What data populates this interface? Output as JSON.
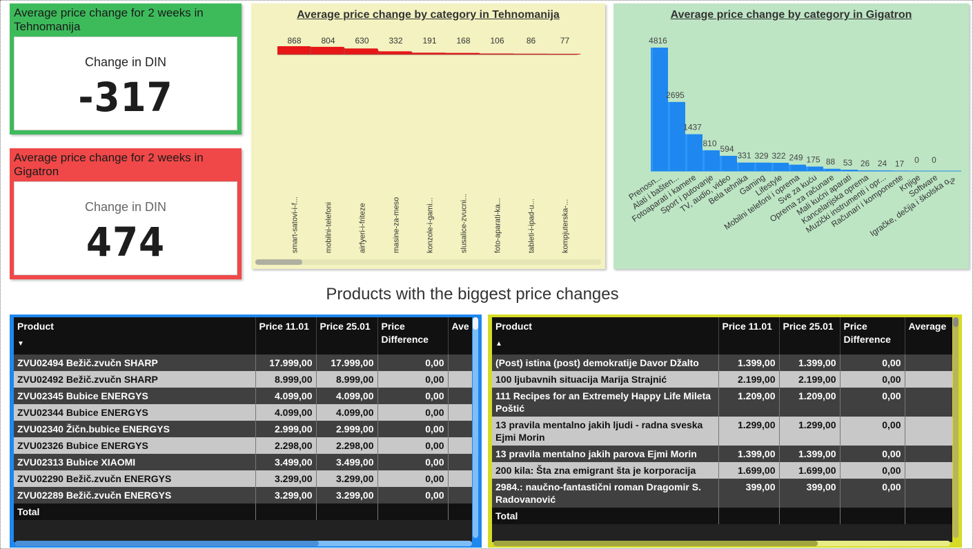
{
  "kpis": {
    "tehnomanija": {
      "title": "Average price change for 2 weeks in Tehnomanija",
      "subtitle": "Change in DIN",
      "value": "-317",
      "color": "#3dbb5b"
    },
    "gigatron": {
      "title": "Average price change for 2 weeks in Gigatron",
      "subtitle": "Change in DIN",
      "value": "474",
      "color": "#f04848"
    }
  },
  "chart_data": [
    {
      "type": "area",
      "title": "Average price change by category in Tehnomanija",
      "background": "#f3f2c0",
      "color": "#e81717",
      "categories": [
        "smart-satovi-i-f...",
        "mobilni-telefoni",
        "airfyeri-i-friteze",
        "masine-za-meso",
        "konzole-i-gami...",
        "slusalice-zvucni...",
        "foto-aparati-ka...",
        "tableti-i-ipad-u...",
        "kompjuterska-..."
      ],
      "values": [
        868,
        804,
        630,
        332,
        191,
        168,
        106,
        86,
        77
      ],
      "value_labels": [
        "868",
        "804",
        "630",
        "332",
        "191",
        "168",
        "106",
        "86",
        "77"
      ]
    },
    {
      "type": "bar",
      "title": "Average price change by category in Gigatron",
      "background": "#bde5c4",
      "color": "#1e88f0",
      "categories": [
        "Prenosn...",
        "Alati i bašten...",
        "Fotoaparati i kamere",
        "Sport i putovanje",
        "TV, audio, video",
        "Bela tehnika",
        "Gaming",
        "Lifestyle",
        "Mobilni telefoni i oprema",
        "Sve za kuću",
        "Oprema za računare",
        "Mali kućni aparati",
        "Kancelarijska oprema",
        "Muzički instrumenti i opr...",
        "Računari i komponente",
        "Knjige",
        "Software",
        "Igračke, dečija i školska o..."
      ],
      "values": [
        4816,
        2695,
        1437,
        810,
        594,
        331,
        329,
        322,
        249,
        175,
        88,
        53,
        26,
        24,
        17,
        0,
        0,
        -2
      ],
      "value_labels": [
        "4816",
        "2695",
        "1437",
        "810",
        "594",
        "331",
        "329",
        "322",
        "249",
        "175",
        "88",
        "53",
        "26",
        "24",
        "17",
        "0",
        "0",
        "-2"
      ]
    }
  ],
  "section_title": "Products with the biggest price changes",
  "tables": {
    "left": {
      "columns": [
        "Product",
        "Price 11.01",
        "Price 25.01",
        "Price Difference",
        "Ave"
      ],
      "sort_indicator": "▼",
      "rows": [
        [
          "ZVU02494 Bežič.zvučn SHARP",
          "17.999,00",
          "17.999,00",
          "0,00"
        ],
        [
          "ZVU02492 Bežič.zvučn SHARP",
          "8.999,00",
          "8.999,00",
          "0,00"
        ],
        [
          "ZVU02345 Bubice ENERGYS",
          "4.099,00",
          "4.099,00",
          "0,00"
        ],
        [
          "ZVU02344 Bubice ENERGYS",
          "4.099,00",
          "4.099,00",
          "0,00"
        ],
        [
          "ZVU02340 Žičn.bubice ENERGYS",
          "2.999,00",
          "2.999,00",
          "0,00"
        ],
        [
          "ZVU02326 Bubice ENERGYS",
          "2.298,00",
          "2.298,00",
          "0,00"
        ],
        [
          "ZVU02313 Bubice XIAOMI",
          "3.499,00",
          "3.499,00",
          "0,00"
        ],
        [
          "ZVU02290 Bežič.zvučn ENERGYS",
          "3.299,00",
          "3.299,00",
          "0,00"
        ],
        [
          "ZVU02289 Bežič.zvučn ENERGYS",
          "3.299,00",
          "3.299,00",
          "0,00"
        ]
      ],
      "total_label": "Total",
      "frame_color": "#1e88f0"
    },
    "right": {
      "columns": [
        "Product",
        "Price 11.01",
        "Price 25.01",
        "Price Difference",
        "Average"
      ],
      "sort_indicator": "▲",
      "rows": [
        [
          "(Post) istina (post) demokratije Davor Džalto",
          "1.399,00",
          "1.399,00",
          "0,00"
        ],
        [
          "100 ljubavnih situacija Marija Strajnić",
          "2.199,00",
          "2.199,00",
          "0,00"
        ],
        [
          "111 Recipes for an Extremely Happy Life Mileta Poštić",
          "1.209,00",
          "1.209,00",
          "0,00"
        ],
        [
          "13 pravila mentalno jakih ljudi - radna sveska Ejmi Morin",
          "1.299,00",
          "1.299,00",
          "0,00"
        ],
        [
          "13 pravila mentalno jakih parova Ejmi Morin",
          "1.399,00",
          "1.399,00",
          "0,00"
        ],
        [
          "200 kila: Šta zna emigrant šta je korporacija",
          "1.699,00",
          "1.699,00",
          "0,00"
        ],
        [
          "2984.: naučno-fantastični roman Dragomir S. Radovanović",
          "399,00",
          "399,00",
          "0,00"
        ]
      ],
      "total_label": "Total",
      "frame_color": "#d6dc26"
    }
  }
}
